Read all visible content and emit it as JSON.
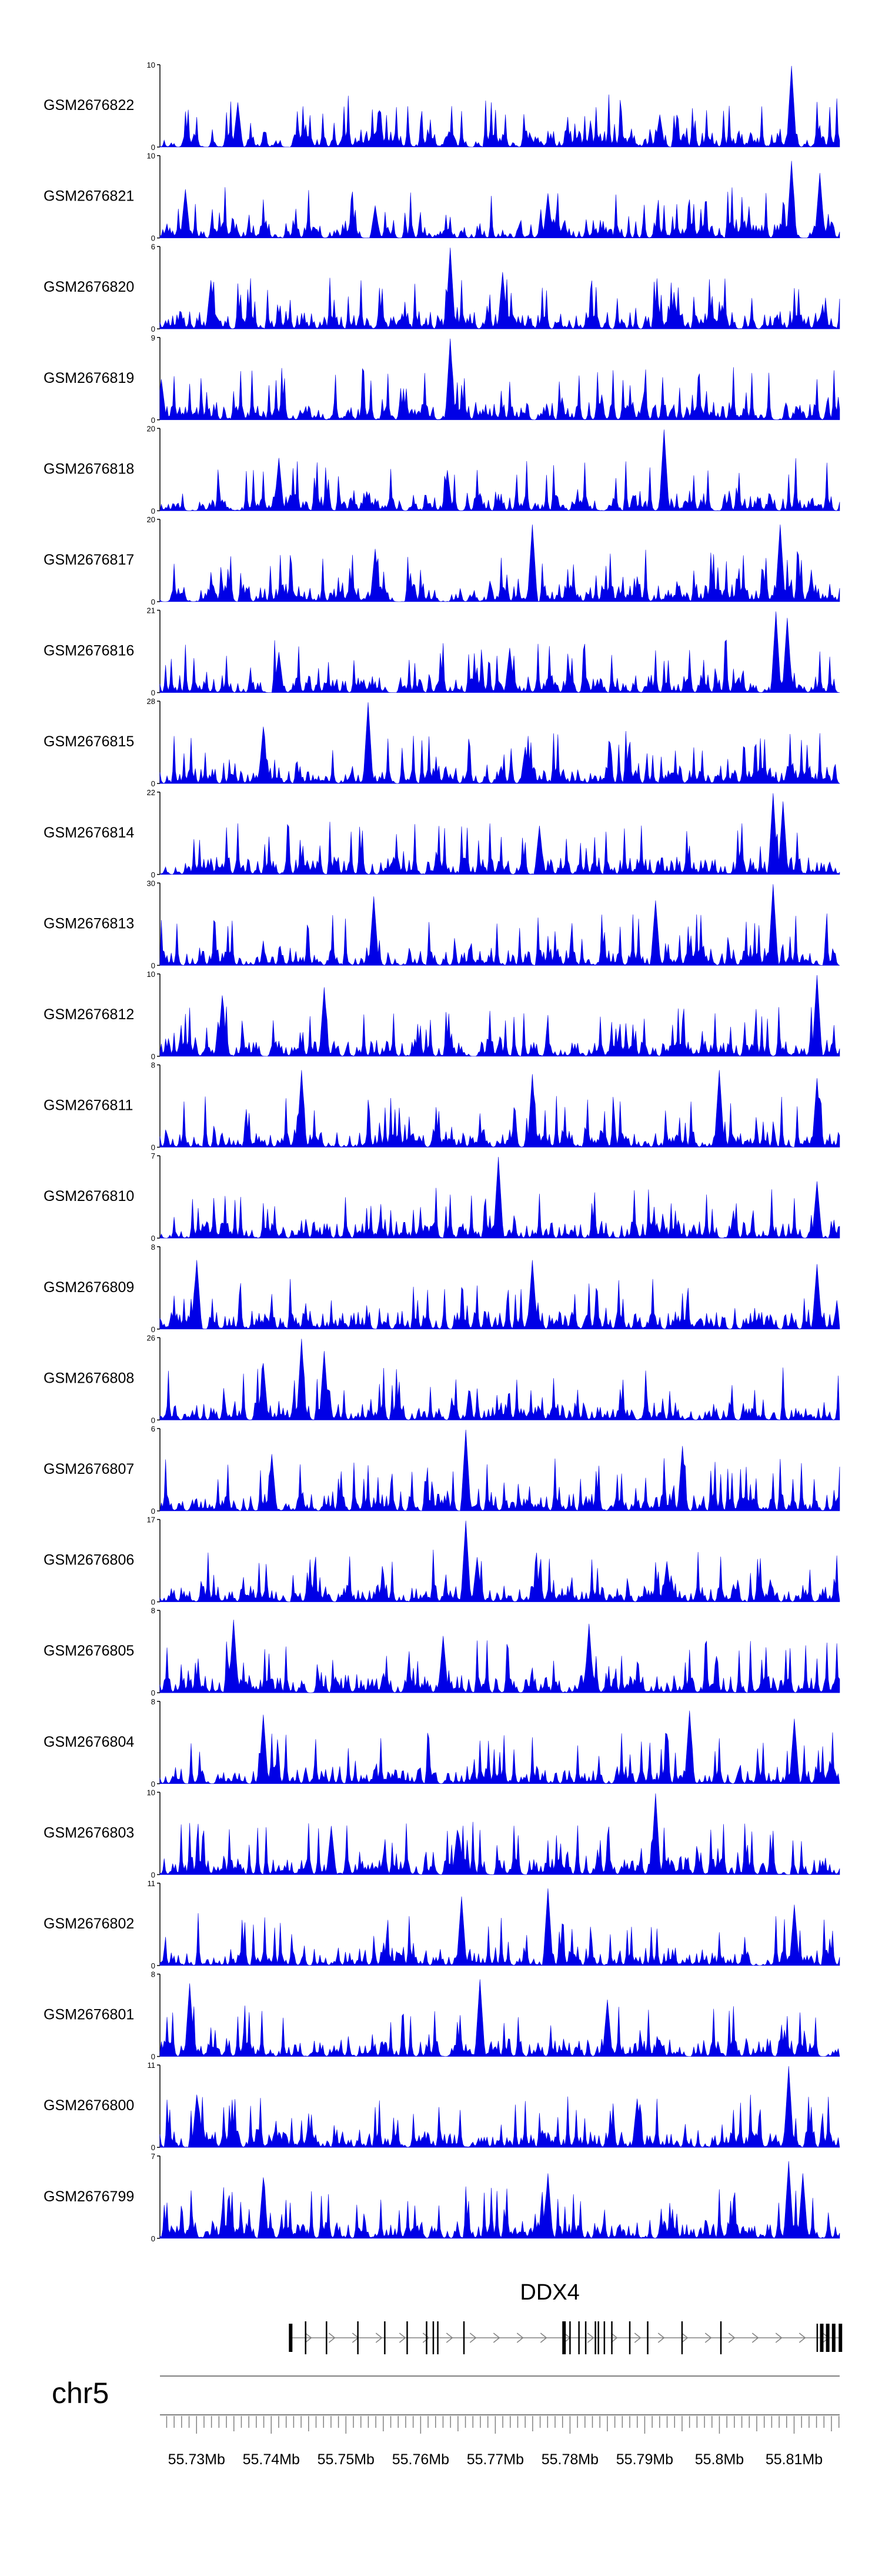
{
  "chart_data": {
    "type": "area",
    "chromosome": "chr5",
    "gene": {
      "name": "DDX4",
      "strand": "+",
      "start": 55.7426,
      "end": 55.8162
    },
    "gene_exons": [
      55.7426,
      55.7446,
      55.7474,
      55.7516,
      55.7552,
      55.7582,
      55.7608,
      55.7617,
      55.7623,
      55.7658,
      55.7792,
      55.78,
      55.7812,
      55.7821,
      55.7834,
      55.7838,
      55.7846,
      55.7856,
      55.788,
      55.7904,
      55.795,
      55.8002,
      55.8131,
      55.8137,
      55.8145,
      55.8153,
      55.8162
    ],
    "xaxis": {
      "range": [
        55.7251,
        55.8161
      ],
      "tick_values": [
        55.73,
        55.74,
        55.75,
        55.76,
        55.77,
        55.78,
        55.79,
        55.8,
        55.81
      ],
      "tick_labels": [
        "55.73Mb",
        "55.74Mb",
        "55.75Mb",
        "55.76Mb",
        "55.77Mb",
        "55.78Mb",
        "55.79Mb",
        "55.8Mb",
        "55.81Mb"
      ]
    },
    "series": [
      {
        "name": "GSM2676822",
        "ymin": 0,
        "ymax": 10,
        "seed": 11,
        "peaks": [
          [
            55.7355,
            0.55
          ],
          [
            55.7545,
            0.45
          ],
          [
            55.792,
            0.4
          ],
          [
            55.8096,
            1.0
          ]
        ]
      },
      {
        "name": "GSM2676821",
        "ymin": 0,
        "ymax": 10,
        "seed": 23,
        "peaks": [
          [
            55.7286,
            0.6
          ],
          [
            55.754,
            0.4
          ],
          [
            55.777,
            0.55
          ],
          [
            55.8096,
            0.95
          ],
          [
            55.8135,
            0.8
          ]
        ]
      },
      {
        "name": "GSM2676820",
        "ymin": 0,
        "ymax": 6,
        "seed": 37,
        "peaks": [
          [
            55.764,
            1.0
          ],
          [
            55.771,
            0.7
          ],
          [
            55.732,
            0.6
          ]
        ]
      },
      {
        "name": "GSM2676819",
        "ymin": 0,
        "ymax": 9,
        "seed": 41,
        "peaks": [
          [
            55.764,
            1.0
          ],
          [
            55.7253,
            0.5
          ],
          [
            55.79,
            0.35
          ]
        ]
      },
      {
        "name": "GSM2676818",
        "ymin": 0,
        "ymax": 20,
        "seed": 53,
        "peaks": [
          [
            55.7925,
            1.0
          ],
          [
            55.7635,
            0.5
          ],
          [
            55.741,
            0.65
          ]
        ]
      },
      {
        "name": "GSM2676817",
        "ymin": 0,
        "ymax": 20,
        "seed": 67,
        "peaks": [
          [
            55.775,
            0.95
          ],
          [
            55.8082,
            0.95
          ],
          [
            55.754,
            0.65
          ]
        ]
      },
      {
        "name": "GSM2676816",
        "ymin": 0,
        "ymax": 21,
        "seed": 71,
        "peaks": [
          [
            55.8075,
            1.0
          ],
          [
            55.809,
            0.92
          ],
          [
            55.741,
            0.5
          ],
          [
            55.772,
            0.55
          ]
        ]
      },
      {
        "name": "GSM2676815",
        "ymin": 0,
        "ymax": 28,
        "seed": 83,
        "peaks": [
          [
            55.753,
            1.0
          ],
          [
            55.739,
            0.7
          ],
          [
            55.774,
            0.45
          ]
        ]
      },
      {
        "name": "GSM2676814",
        "ymin": 0,
        "ymax": 22,
        "seed": 97,
        "peaks": [
          [
            55.8072,
            1.0
          ],
          [
            55.8085,
            0.9
          ],
          [
            55.776,
            0.6
          ]
        ]
      },
      {
        "name": "GSM2676813",
        "ymin": 0,
        "ymax": 30,
        "seed": 101,
        "peaks": [
          [
            55.8072,
            1.0
          ],
          [
            55.7537,
            0.85
          ],
          [
            55.7915,
            0.8
          ]
        ]
      },
      {
        "name": "GSM2676812",
        "ymin": 0,
        "ymax": 10,
        "seed": 113,
        "peaks": [
          [
            55.813,
            1.0
          ],
          [
            55.747,
            0.85
          ],
          [
            55.7335,
            0.75
          ]
        ]
      },
      {
        "name": "GSM2676811",
        "ymin": 0,
        "ymax": 8,
        "seed": 127,
        "peaks": [
          [
            55.744,
            0.95
          ],
          [
            55.8,
            0.95
          ],
          [
            55.775,
            0.9
          ],
          [
            55.813,
            0.85
          ]
        ]
      },
      {
        "name": "GSM2676810",
        "ymin": 0,
        "ymax": 7,
        "seed": 131,
        "peaks": [
          [
            55.7705,
            1.0
          ],
          [
            55.813,
            0.7
          ]
        ]
      },
      {
        "name": "GSM2676809",
        "ymin": 0,
        "ymax": 8,
        "seed": 149,
        "peaks": [
          [
            55.73,
            0.85
          ],
          [
            55.775,
            0.85
          ],
          [
            55.813,
            0.8
          ]
        ]
      },
      {
        "name": "GSM2676808",
        "ymin": 0,
        "ymax": 26,
        "seed": 157,
        "peaks": [
          [
            55.744,
            1.0
          ],
          [
            55.739,
            0.7
          ],
          [
            55.747,
            0.85
          ]
        ]
      },
      {
        "name": "GSM2676807",
        "ymin": 0,
        "ymax": 6,
        "seed": 163,
        "peaks": [
          [
            55.766,
            1.0
          ],
          [
            55.74,
            0.7
          ],
          [
            55.795,
            0.8
          ]
        ]
      },
      {
        "name": "GSM2676806",
        "ymin": 0,
        "ymax": 17,
        "seed": 179,
        "peaks": [
          [
            55.766,
            1.0
          ],
          [
            55.7675,
            0.55
          ],
          [
            55.793,
            0.5
          ]
        ]
      },
      {
        "name": "GSM2676805",
        "ymin": 0,
        "ymax": 8,
        "seed": 181,
        "peaks": [
          [
            55.735,
            0.9
          ],
          [
            55.7825,
            0.85
          ],
          [
            55.763,
            0.7
          ]
        ]
      },
      {
        "name": "GSM2676804",
        "ymin": 0,
        "ymax": 8,
        "seed": 191,
        "peaks": [
          [
            55.739,
            0.85
          ],
          [
            55.796,
            0.9
          ],
          [
            55.81,
            0.8
          ]
        ]
      },
      {
        "name": "GSM2676803",
        "ymin": 0,
        "ymax": 10,
        "seed": 199,
        "peaks": [
          [
            55.7915,
            1.0
          ],
          [
            55.748,
            0.6
          ],
          [
            55.765,
            0.55
          ]
        ]
      },
      {
        "name": "GSM2676802",
        "ymin": 0,
        "ymax": 11,
        "seed": 211,
        "peaks": [
          [
            55.777,
            0.95
          ],
          [
            55.7655,
            0.85
          ],
          [
            55.81,
            0.75
          ]
        ]
      },
      {
        "name": "GSM2676801",
        "ymin": 0,
        "ymax": 8,
        "seed": 223,
        "peaks": [
          [
            55.768,
            0.95
          ],
          [
            55.729,
            0.9
          ],
          [
            55.785,
            0.7
          ]
        ]
      },
      {
        "name": "GSM2676800",
        "ymin": 0,
        "ymax": 11,
        "seed": 227,
        "peaks": [
          [
            55.8092,
            1.0
          ],
          [
            55.789,
            0.6
          ],
          [
            55.73,
            0.65
          ]
        ]
      },
      {
        "name": "GSM2676799",
        "ymin": 0,
        "ymax": 7,
        "seed": 233,
        "peaks": [
          [
            55.8092,
            0.95
          ],
          [
            55.8112,
            0.8
          ],
          [
            55.739,
            0.75
          ],
          [
            55.777,
            0.8
          ]
        ]
      }
    ]
  },
  "colors": {
    "signal": "#0000e6",
    "axis": "#000000",
    "gene": "#000000",
    "gene_line": "#808080",
    "ideogram": "#808080"
  }
}
